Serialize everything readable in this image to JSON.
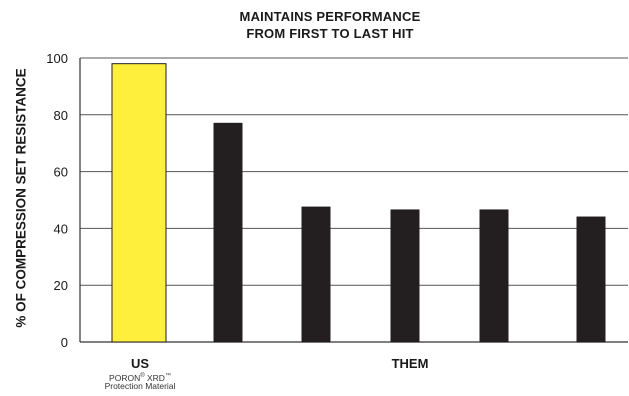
{
  "chart_data": {
    "type": "bar",
    "title_lines": [
      "MAINTAINS PERFORMANCE",
      "FROM FIRST TO LAST HIT"
    ],
    "ylabel": "% OF COMPRESSION SET RESISTANCE",
    "ylim": [
      0,
      100
    ],
    "yticks": [
      "0",
      "20",
      "40",
      "60",
      "80",
      "100"
    ],
    "grid": true,
    "categories": [
      "",
      "",
      "",
      "",
      "",
      ""
    ],
    "values": [
      98,
      77,
      47.5,
      46.5,
      46.5,
      44
    ],
    "bar_colors": [
      "#ffef3d",
      "#231f20",
      "#231f20",
      "#231f20",
      "#231f20",
      "#231f20"
    ],
    "group_labels": {
      "us": "US",
      "us_sub_brand": "PORON",
      "us_sub_mark1": "®",
      "us_sub_product": " XRD",
      "us_sub_mark2": "™",
      "us_sub_line2": "Protection Material",
      "them": "THEM"
    }
  }
}
